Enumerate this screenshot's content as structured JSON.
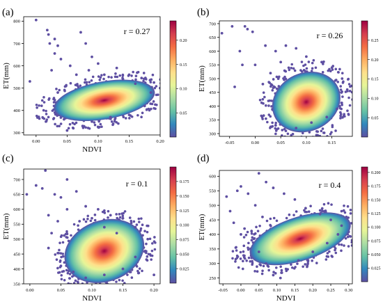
{
  "colors": {
    "density_scale": [
      "#5e4fa2",
      "#3288bd",
      "#66c2a5",
      "#abdda4",
      "#e6f598",
      "#fee08b",
      "#fdae61",
      "#f46d43",
      "#d53e4f",
      "#9e0142"
    ]
  },
  "chart_data": [
    {
      "type": "scatter",
      "panel_label": "(a)",
      "annotation": "r = 0.27",
      "title": "",
      "xlabel": "NDVI",
      "ylabel": "ET(mm)",
      "xlim": [
        -0.02,
        0.2
      ],
      "ylim": [
        290,
        820
      ],
      "xticks": [
        0.0,
        0.05,
        0.1,
        0.15,
        0.2
      ],
      "xtick_labels": [
        "0.00",
        "0.05",
        "0.10",
        "0.15",
        "0.20"
      ],
      "yticks": [
        300,
        400,
        500,
        600,
        700,
        800
      ],
      "ytick_labels": [
        "300",
        "400",
        "500",
        "600",
        "700",
        "800"
      ],
      "colorbar": {
        "range": [
          0,
          0.24
        ],
        "ticks": [
          0.05,
          0.1,
          0.15,
          0.2
        ],
        "tick_labels": [
          "0.05",
          "0.10",
          "0.15",
          "0.20"
        ]
      },
      "density_center": {
        "x": 0.11,
        "y": 445
      },
      "points": [
        [
          -0.01,
          530
        ],
        [
          0.0,
          805
        ],
        [
          0.018,
          760
        ],
        [
          0.02,
          740
        ],
        [
          0.022,
          700
        ],
        [
          0.03,
          720
        ],
        [
          0.035,
          690
        ],
        [
          0.03,
          655
        ],
        [
          0.04,
          630
        ],
        [
          0.055,
          600
        ],
        [
          0.072,
          750
        ],
        [
          0.08,
          700
        ],
        [
          0.09,
          640
        ],
        [
          0.1,
          610
        ],
        [
          0.13,
          590
        ],
        [
          0.15,
          560
        ],
        [
          0.17,
          545
        ],
        [
          0.19,
          525
        ],
        [
          0.2,
          500
        ],
        [
          0.045,
          360
        ],
        [
          0.05,
          310
        ],
        [
          0.06,
          320
        ],
        [
          0.075,
          330
        ],
        [
          0.09,
          350
        ],
        [
          0.12,
          370
        ],
        [
          0.15,
          380
        ],
        [
          0.175,
          420
        ],
        [
          0.025,
          580
        ],
        [
          0.065,
          560
        ],
        [
          0.085,
          580
        ],
        [
          0.11,
          560
        ],
        [
          0.14,
          540
        ],
        [
          0.16,
          520
        ],
        [
          0.185,
          480
        ],
        [
          0.035,
          480
        ]
      ]
    },
    {
      "type": "scatter",
      "panel_label": "(b)",
      "annotation": "r = 0.26",
      "title": "",
      "xlabel": "",
      "ylabel": "ET(mm)",
      "xlim": [
        -0.07,
        0.19
      ],
      "ylim": [
        290,
        710
      ],
      "xticks": [
        -0.05,
        0.0,
        0.05,
        0.1,
        0.15
      ],
      "xtick_labels": [
        "-0.05",
        "0.00",
        "0.05",
        "0.10",
        "0.15"
      ],
      "yticks": [
        300,
        350,
        400,
        450,
        500,
        550,
        600,
        650,
        700
      ],
      "ytick_labels": [
        "300",
        "350",
        "400",
        "450",
        "500",
        "550",
        "600",
        "650",
        "700"
      ],
      "colorbar": {
        "range": [
          0,
          0.3
        ],
        "ticks": [
          0.05,
          0.1,
          0.15,
          0.2,
          0.25
        ],
        "tick_labels": [
          "0.05",
          "0.10",
          "0.15",
          "0.20",
          "0.25"
        ]
      },
      "density_center": {
        "x": 0.1,
        "y": 415
      },
      "points": [
        [
          -0.065,
          665
        ],
        [
          -0.045,
          690
        ],
        [
          -0.02,
          690
        ],
        [
          -0.015,
          680
        ],
        [
          -0.005,
          670
        ],
        [
          -0.03,
          600
        ],
        [
          -0.025,
          550
        ],
        [
          -0.04,
          470
        ],
        [
          0.02,
          620
        ],
        [
          0.04,
          600
        ],
        [
          0.06,
          620
        ],
        [
          0.08,
          610
        ],
        [
          0.1,
          580
        ],
        [
          0.13,
          560
        ],
        [
          0.15,
          540
        ],
        [
          0.17,
          500
        ],
        [
          0.18,
          460
        ],
        [
          0.05,
          560
        ],
        [
          0.03,
          520
        ],
        [
          0.04,
          330
        ],
        [
          0.06,
          310
        ],
        [
          0.08,
          320
        ],
        [
          0.11,
          340
        ],
        [
          0.14,
          360
        ],
        [
          0.16,
          390
        ],
        [
          0.015,
          480
        ],
        [
          0.0,
          550
        ]
      ]
    },
    {
      "type": "scatter",
      "panel_label": "(c)",
      "annotation": "r = 0.1",
      "title": "",
      "xlabel": "NDVI",
      "ylabel": "ET(mm)",
      "xlim": [
        -0.01,
        0.21
      ],
      "ylim": [
        350,
        735
      ],
      "xticks": [
        0.0,
        0.05,
        0.1,
        0.15,
        0.2
      ],
      "xtick_labels": [
        "0.00",
        "0.05",
        "0.10",
        "0.15",
        "0.20"
      ],
      "yticks": [
        350,
        400,
        450,
        500,
        550,
        600,
        650,
        700
      ],
      "ytick_labels": [
        "350",
        "400",
        "450",
        "500",
        "550",
        "600",
        "650",
        "700"
      ],
      "colorbar": {
        "range": [
          0,
          0.2
        ],
        "ticks": [
          0.025,
          0.05,
          0.075,
          0.1,
          0.125,
          0.15,
          0.175
        ],
        "tick_labels": [
          "0.025",
          "0.050",
          "0.075",
          "0.100",
          "0.125",
          "0.150",
          "0.175"
        ]
      },
      "density_center": {
        "x": 0.12,
        "y": 460
      },
      "points": [
        [
          -0.005,
          650
        ],
        [
          0.01,
          680
        ],
        [
          0.025,
          730
        ],
        [
          0.02,
          670
        ],
        [
          0.04,
          650
        ],
        [
          0.05,
          640
        ],
        [
          0.06,
          700
        ],
        [
          0.075,
          660
        ],
        [
          0.09,
          610
        ],
        [
          0.11,
          600
        ],
        [
          0.13,
          580
        ],
        [
          0.15,
          570
        ],
        [
          0.17,
          540
        ],
        [
          0.19,
          500
        ],
        [
          0.2,
          380
        ],
        [
          0.03,
          580
        ],
        [
          0.045,
          560
        ],
        [
          0.035,
          520
        ],
        [
          0.03,
          470
        ],
        [
          0.05,
          410
        ],
        [
          0.07,
          390
        ],
        [
          0.09,
          370
        ],
        [
          0.12,
          380
        ],
        [
          0.15,
          400
        ],
        [
          0.17,
          440
        ],
        [
          0.06,
          600
        ],
        [
          0.08,
          560
        ],
        [
          0.1,
          570
        ],
        [
          0.12,
          540
        ],
        [
          0.14,
          520
        ]
      ]
    },
    {
      "type": "scatter",
      "panel_label": "(d)",
      "annotation": "r = 0.4",
      "title": "",
      "xlabel": "NDVI",
      "ylabel": "ET(mm)",
      "xlim": [
        -0.06,
        0.31
      ],
      "ylim": [
        230,
        620
      ],
      "xticks": [
        -0.05,
        0.0,
        0.05,
        0.1,
        0.15,
        0.2,
        0.25,
        0.3
      ],
      "xtick_labels": [
        "-0.05",
        "0.00",
        "0.05",
        "0.10",
        "0.15",
        "0.20",
        "0.25",
        "0.30"
      ],
      "yticks": [
        250,
        300,
        350,
        400,
        450,
        500,
        550,
        600
      ],
      "ytick_labels": [
        "250",
        "300",
        "350",
        "400",
        "450",
        "500",
        "550",
        "600"
      ],
      "colorbar": {
        "range": [
          0,
          0.21
        ],
        "ticks": [
          0.025,
          0.05,
          0.075,
          0.1,
          0.125,
          0.15,
          0.175,
          0.2
        ],
        "tick_labels": [
          "0.025",
          "0.050",
          "0.075",
          "0.100",
          "0.125",
          "0.150",
          "0.175",
          "0.200"
        ]
      },
      "density_center": {
        "x": 0.165,
        "y": 385
      },
      "points": [
        [
          -0.04,
          530
        ],
        [
          -0.03,
          480
        ],
        [
          -0.01,
          550
        ],
        [
          0.0,
          565
        ],
        [
          0.02,
          540
        ],
        [
          0.05,
          610
        ],
        [
          0.07,
          580
        ],
        [
          0.09,
          560
        ],
        [
          0.12,
          540
        ],
        [
          0.15,
          520
        ],
        [
          0.18,
          490
        ],
        [
          0.22,
          470
        ],
        [
          0.25,
          450
        ],
        [
          0.28,
          430
        ],
        [
          0.01,
          420
        ],
        [
          0.03,
          380
        ],
        [
          0.05,
          340
        ],
        [
          0.07,
          300
        ],
        [
          0.09,
          260
        ],
        [
          0.11,
          250
        ],
        [
          0.13,
          280
        ],
        [
          0.16,
          310
        ],
        [
          0.2,
          340
        ],
        [
          0.24,
          370
        ],
        [
          0.27,
          400
        ],
        [
          0.04,
          500
        ],
        [
          0.06,
          460
        ],
        [
          -0.02,
          440
        ],
        [
          0.0,
          400
        ]
      ]
    }
  ]
}
